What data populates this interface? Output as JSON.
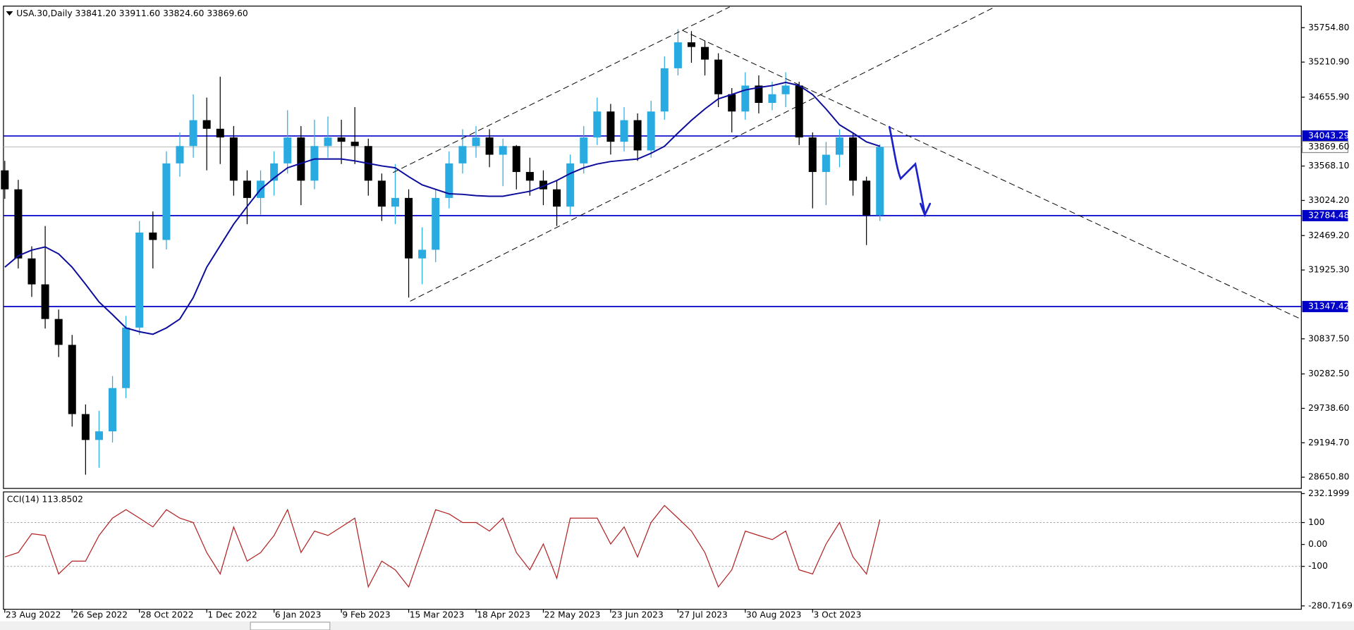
{
  "chart_data": [
    {
      "type": "candlestick",
      "title": "USA.30,Daily  33841.20 33911.60 33824.60 33869.60",
      "xlim": [
        -0.1,
        96.3
      ],
      "ylim": [
        28473,
        36096
      ],
      "yticks": [
        {
          "value": 35754.8,
          "label": "35754.80"
        },
        {
          "value": 35210.9,
          "label": "35210.90"
        },
        {
          "value": 34655.9,
          "label": "34655.90"
        },
        {
          "value": 33568.1,
          "label": "33568.10"
        },
        {
          "value": 33024.2,
          "label": "33024.20"
        },
        {
          "value": 32469.2,
          "label": "32469.20"
        },
        {
          "value": 31925.3,
          "label": "31925.30"
        },
        {
          "value": 30837.5,
          "label": "30837.50"
        },
        {
          "value": 30282.5,
          "label": "30282.50"
        },
        {
          "value": 29738.6,
          "label": "29738.60"
        },
        {
          "value": 29194.7,
          "label": "29194.70"
        },
        {
          "value": 28650.8,
          "label": "28650.80"
        }
      ],
      "up_color": "#29abe2",
      "down_color": "#000000",
      "open": [
        33500,
        33200,
        32108,
        31698,
        31151,
        30742,
        29648,
        29239,
        29375,
        30059,
        31015,
        32517,
        32400,
        33610,
        33884,
        34293,
        34157,
        34020,
        33337,
        33064,
        33337,
        33610,
        34020,
        33337,
        33884,
        34020,
        33952,
        33884,
        33337,
        32927,
        33064,
        32108,
        32245,
        33064,
        33610,
        33884,
        34020,
        33747,
        33884,
        33474,
        33337,
        33200,
        32927,
        33610,
        34020,
        34430,
        33952,
        34293,
        33815,
        34430,
        35113,
        35523,
        35450,
        35250,
        34703,
        34430,
        34840,
        34566,
        34703,
        34840,
        34020,
        33474,
        33747,
        34020,
        33337,
        32790
      ],
      "high": [
        33650,
        33350,
        32300,
        32620,
        31300,
        30900,
        29800,
        29700,
        30250,
        31200,
        32700,
        32850,
        33800,
        34100,
        34700,
        34650,
        34980,
        34200,
        33500,
        33500,
        33800,
        34450,
        34200,
        34300,
        34350,
        34300,
        34500,
        34000,
        33450,
        33600,
        33200,
        32600,
        33200,
        33800,
        34150,
        34200,
        34150,
        34000,
        33900,
        33700,
        33500,
        33350,
        33750,
        34200,
        34650,
        34550,
        34500,
        34400,
        34600,
        35300,
        35730,
        35700,
        35550,
        35350,
        34800,
        35050,
        35000,
        34900,
        35050,
        34900,
        34100,
        33950,
        34150,
        34100,
        33400,
        33911.6
      ],
      "low": [
        33050,
        31950,
        31500,
        31000,
        30550,
        29450,
        28690,
        28800,
        29200,
        29900,
        30900,
        31950,
        32250,
        33400,
        33700,
        33500,
        33600,
        33100,
        32650,
        32800,
        33100,
        33450,
        32950,
        33200,
        33700,
        33600,
        33600,
        33100,
        32700,
        32650,
        31490,
        31700,
        32050,
        32900,
        33450,
        33700,
        33550,
        33250,
        33200,
        33100,
        32950,
        32620,
        32800,
        33450,
        33900,
        33750,
        33800,
        33650,
        33700,
        34300,
        35000,
        35200,
        35000,
        34500,
        34100,
        34300,
        34400,
        34450,
        34500,
        33900,
        32900,
        32950,
        33550,
        33100,
        32320,
        32700
      ],
      "close": [
        33200,
        32108,
        31698,
        31151,
        30742,
        29648,
        29239,
        29375,
        30059,
        31015,
        32517,
        32400,
        33610,
        33884,
        34293,
        34157,
        34020,
        33337,
        33064,
        33337,
        33610,
        34020,
        33337,
        33884,
        34020,
        33952,
        33884,
        33337,
        32927,
        33064,
        32108,
        32245,
        33064,
        33610,
        33884,
        34020,
        33747,
        33884,
        33474,
        33337,
        33200,
        32927,
        33610,
        34020,
        34430,
        33952,
        34293,
        33815,
        34430,
        35113,
        35523,
        35450,
        35250,
        34703,
        34430,
        34840,
        34566,
        34703,
        34840,
        34020,
        33474,
        33747,
        34020,
        33337,
        32790,
        33869.6
      ],
      "overlay": {
        "color": "#0b0b9c",
        "values": [
          31970,
          32150,
          32240,
          32290,
          32180,
          31970,
          31700,
          31420,
          31220,
          31010,
          30950,
          30910,
          31010,
          31150,
          31490,
          31970,
          32310,
          32650,
          32930,
          33200,
          33380,
          33540,
          33610,
          33680,
          33680,
          33680,
          33650,
          33610,
          33570,
          33540,
          33400,
          33270,
          33200,
          33130,
          33120,
          33100,
          33090,
          33090,
          33130,
          33170,
          33250,
          33340,
          33450,
          33540,
          33600,
          33640,
          33660,
          33680,
          33770,
          33880,
          34090,
          34290,
          34470,
          34630,
          34700,
          34770,
          34810,
          34840,
          34890,
          34840,
          34700,
          34470,
          34220,
          34090,
          33950,
          33880
        ]
      },
      "levels": [
        {
          "value": 34043.29,
          "color": "#0000c8"
        },
        {
          "value": 32784.48,
          "color": "#0000c8"
        },
        {
          "value": 31347.42,
          "color": "#0000c8"
        }
      ],
      "last": {
        "value": 33869.6,
        "label": "33869.60"
      }
    },
    {
      "type": "line",
      "title": "CCI(14) 113.8502",
      "color": "#b22222",
      "xlim": [
        -0.1,
        96.3
      ],
      "ylim": [
        -296,
        240
      ],
      "yticks": [
        232.1999,
        100,
        {
          "value": 0,
          "label": "0.00"
        },
        -100,
        -280.7169
      ],
      "dotted_levels": [
        100,
        -100
      ],
      "xticks": [
        {
          "value": 0,
          "label": "23 Aug 2022"
        },
        {
          "value": 5,
          "label": "26 Sep 2022"
        },
        {
          "value": 10,
          "label": "28 Oct 2022"
        },
        {
          "value": 15,
          "label": "1 Dec 2022"
        },
        {
          "value": 20,
          "label": "6 Jan 2023"
        },
        {
          "value": 25,
          "label": "9 Feb 2023"
        },
        {
          "value": 30,
          "label": "15 Mar 2023"
        },
        {
          "value": 35,
          "label": "18 Apr 2023"
        },
        {
          "value": 40,
          "label": "22 May 2023"
        },
        {
          "value": 45,
          "label": "23 Jun 2023"
        },
        {
          "value": 50,
          "label": "27 Jul 2023"
        },
        {
          "value": 55,
          "label": "30 Aug 2023"
        },
        {
          "value": 60,
          "label": "3 Oct 2023"
        }
      ],
      "values": [
        -57,
        -37,
        49,
        41,
        -135,
        -76,
        -76,
        41,
        120,
        159,
        120,
        80,
        159,
        120,
        100,
        -37,
        -135,
        80,
        -76,
        -37,
        41,
        159,
        -37,
        61,
        41,
        80,
        120,
        -194,
        -76,
        -116,
        -194,
        -18,
        159,
        139,
        100,
        100,
        61,
        120,
        -37,
        -116,
        2,
        -155,
        120,
        120,
        120,
        2,
        80,
        -57,
        100,
        178,
        120,
        61,
        -37,
        -194,
        -116,
        61,
        41,
        22,
        61,
        -116,
        -135,
        2,
        100,
        -57,
        -135,
        113.8502
      ]
    }
  ]
}
